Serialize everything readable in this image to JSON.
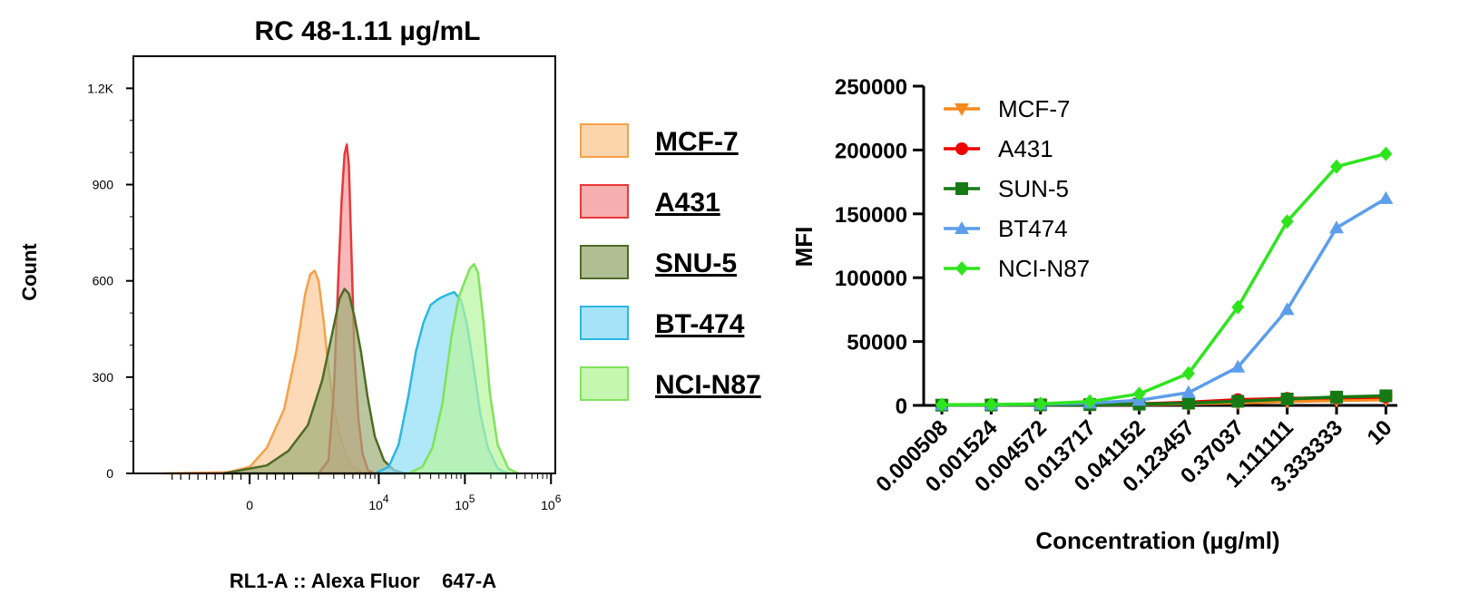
{
  "chart_data": [
    {
      "type": "area",
      "title": "RC 48-1.11 µg/mL",
      "xlabel": "RL1-A :: Alexa Fluor    647-A",
      "ylabel": "Count",
      "ylim": [
        0,
        1300
      ],
      "x_scale": "biexponential",
      "y_ticks": [
        "0",
        "300",
        "600",
        "900",
        "1.2K"
      ],
      "y_tick_values": [
        0,
        300,
        600,
        900,
        1200
      ],
      "x_tick_labels": [
        {
          "base": "0",
          "exp": ""
        },
        {
          "base": "10",
          "exp": "4"
        },
        {
          "base": "10",
          "exp": "5"
        },
        {
          "base": "10",
          "exp": "6"
        }
      ],
      "x_tick_values": [
        0,
        10000,
        100000,
        1000000
      ],
      "legend_position": "right",
      "series": [
        {
          "name": "MCF-7",
          "color": "#F5A04A",
          "fill": "#FBCB99",
          "points": [
            [
              -2000,
              0
            ],
            [
              -500,
              4
            ],
            [
              0,
              20
            ],
            [
              400,
              80
            ],
            [
              800,
              200
            ],
            [
              1100,
              380
            ],
            [
              1400,
              560
            ],
            [
              1600,
              620
            ],
            [
              1800,
              632
            ],
            [
              2000,
              600
            ],
            [
              2300,
              470
            ],
            [
              2600,
              330
            ],
            [
              3000,
              210
            ],
            [
              3500,
              120
            ],
            [
              4200,
              55
            ],
            [
              5000,
              18
            ],
            [
              6500,
              4
            ],
            [
              9000,
              0
            ]
          ]
        },
        {
          "name": "A431",
          "color": "#E8383B",
          "fill": "#F59A9B",
          "points": [
            [
              2000,
              0
            ],
            [
              2600,
              40
            ],
            [
              3000,
              250
            ],
            [
              3400,
              620
            ],
            [
              3700,
              850
            ],
            [
              4000,
              995
            ],
            [
              4250,
              1025
            ],
            [
              4500,
              960
            ],
            [
              4800,
              700
            ],
            [
              5200,
              380
            ],
            [
              5800,
              170
            ],
            [
              6500,
              60
            ],
            [
              7500,
              10
            ],
            [
              9000,
              0
            ]
          ]
        },
        {
          "name": "SNU-5",
          "color": "#4E6B24",
          "fill": "#9CAE78",
          "points": [
            [
              -600,
              0
            ],
            [
              400,
              25
            ],
            [
              900,
              70
            ],
            [
              1500,
              150
            ],
            [
              2200,
              290
            ],
            [
              2900,
              440
            ],
            [
              3500,
              545
            ],
            [
              4000,
              575
            ],
            [
              4500,
              560
            ],
            [
              5200,
              490
            ],
            [
              6200,
              380
            ],
            [
              7400,
              240
            ],
            [
              9000,
              115
            ],
            [
              11500,
              40
            ],
            [
              15000,
              10
            ],
            [
              20000,
              0
            ]
          ]
        },
        {
          "name": "BT-474",
          "color": "#2BB7E3",
          "fill": "#8FDDF6",
          "points": [
            [
              9000,
              0
            ],
            [
              13000,
              20
            ],
            [
              17000,
              90
            ],
            [
              22000,
              240
            ],
            [
              27000,
              380
            ],
            [
              33000,
              470
            ],
            [
              40000,
              525
            ],
            [
              50000,
              545
            ],
            [
              60000,
              555
            ],
            [
              75000,
              565
            ],
            [
              90000,
              540
            ],
            [
              105000,
              470
            ],
            [
              125000,
              340
            ],
            [
              150000,
              190
            ],
            [
              185000,
              80
            ],
            [
              240000,
              15
            ],
            [
              320000,
              0
            ]
          ]
        },
        {
          "name": "NCI-N87",
          "color": "#7FE35B",
          "fill": "#B8F59E",
          "points": [
            [
              22000,
              0
            ],
            [
              32000,
              20
            ],
            [
              42000,
              80
            ],
            [
              55000,
              220
            ],
            [
              70000,
              430
            ],
            [
              85000,
              550
            ],
            [
              100000,
              600
            ],
            [
              115000,
              640
            ],
            [
              128000,
              652
            ],
            [
              142000,
              625
            ],
            [
              165000,
              470
            ],
            [
              195000,
              250
            ],
            [
              240000,
              90
            ],
            [
              320000,
              15
            ],
            [
              420000,
              0
            ]
          ]
        }
      ]
    },
    {
      "type": "line",
      "xlabel": "Concentration (µg/ml)",
      "ylabel": "MFI",
      "ylim": [
        0,
        250000
      ],
      "y_ticks": [
        "0",
        "50000",
        "100000",
        "150000",
        "200000",
        "250000"
      ],
      "y_tick_values": [
        0,
        50000,
        100000,
        150000,
        200000,
        250000
      ],
      "x": [
        "0.000508",
        "0.001524",
        "0.004572",
        "0.013717",
        "0.041152",
        "0.123457",
        "0.37037",
        "1.111111",
        "3.333333",
        "10"
      ],
      "legend_position": "top-left",
      "series": [
        {
          "name": "MCF-7",
          "color": "#F5891E",
          "marker": "triangle-down",
          "values": [
            300,
            350,
            400,
            500,
            700,
            1200,
            2000,
            3000,
            3800,
            4500
          ]
        },
        {
          "name": "A431",
          "color": "#EE0000",
          "marker": "circle",
          "values": [
            300,
            400,
            500,
            700,
            1200,
            2500,
            4500,
            5500,
            6000,
            6500
          ]
        },
        {
          "name": "SUN-5",
          "color": "#157A13",
          "marker": "square",
          "values": [
            200,
            300,
            400,
            600,
            1000,
            1800,
            3200,
            5000,
            6500,
            7500
          ]
        },
        {
          "name": "BT474",
          "color": "#5C9EEB",
          "marker": "triangle-up",
          "values": [
            400,
            600,
            900,
            1800,
            4000,
            10000,
            30000,
            75000,
            139000,
            162000
          ]
        },
        {
          "name": "NCI-N87",
          "color": "#2EE51D",
          "marker": "diamond",
          "values": [
            500,
            700,
            1200,
            3000,
            9000,
            25000,
            77000,
            144000,
            187000,
            197000
          ]
        }
      ]
    }
  ]
}
